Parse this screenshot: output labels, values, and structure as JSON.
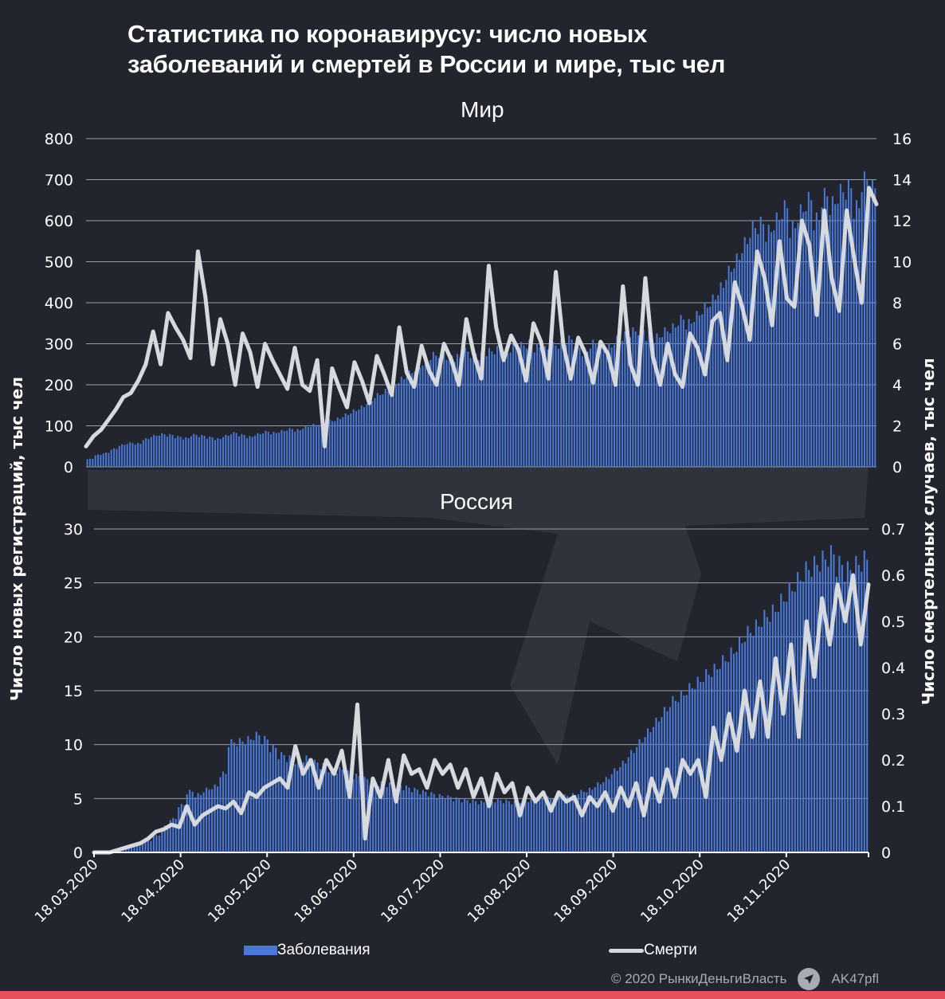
{
  "title_line1": "Статистика по коронавирусу: число новых",
  "title_line2": "заболеваний и смертей в России и мире, тыс чел",
  "legend": {
    "cases": "Заболевания",
    "deaths": "Смерти"
  },
  "footer": {
    "copyright": "© 2020  РынкиДеньгиВласть",
    "telegram_handle": "AK47pfl"
  },
  "colors": {
    "background": "#22252e",
    "bars": "#4a78d8",
    "line": "#d6d9de",
    "grid": "#9a9ea6",
    "accent_bar": "#e8505b"
  },
  "chart_data": [
    {
      "type": "bar+line",
      "title": "Мир",
      "ylabel_left": "Число новых регистраций, тыс чел",
      "ylabel_right": "Число смертельных случаев, тыс чел",
      "ylim_left": [
        0,
        800
      ],
      "ylim_right": [
        0,
        16
      ],
      "yticks_left": [
        0,
        100,
        200,
        300,
        400,
        500,
        600,
        700,
        800
      ],
      "yticks_right": [
        0,
        2,
        4,
        6,
        8,
        10,
        12,
        14,
        16
      ],
      "grid": true,
      "x_start": "18.03.2020",
      "x_step_days": 3,
      "series": [
        {
          "name": "Заболевания",
          "axis": "left",
          "kind": "bar",
          "values": [
            20,
            30,
            35,
            45,
            55,
            60,
            58,
            70,
            78,
            82,
            80,
            75,
            72,
            80,
            78,
            74,
            70,
            78,
            85,
            80,
            75,
            82,
            88,
            85,
            90,
            95,
            92,
            100,
            105,
            110,
            115,
            120,
            130,
            140,
            150,
            165,
            180,
            190,
            205,
            220,
            235,
            250,
            265,
            280,
            285,
            280,
            275,
            290,
            285,
            280,
            290,
            295,
            285,
            300,
            305,
            310,
            300,
            295,
            305,
            310,
            320,
            300,
            290,
            310,
            305,
            300,
            320,
            330,
            340,
            345,
            330,
            325,
            340,
            350,
            370,
            360,
            380,
            400,
            420,
            450,
            490,
            520,
            560,
            600,
            610,
            590,
            620,
            650,
            600,
            640,
            670,
            620,
            680,
            660,
            690,
            700,
            650,
            720,
            700
          ]
        },
        {
          "name": "Смерти",
          "axis": "right",
          "kind": "line",
          "values": [
            1.0,
            1.5,
            1.8,
            2.3,
            2.8,
            3.4,
            3.6,
            4.2,
            5.0,
            6.6,
            5.0,
            7.5,
            6.8,
            6.2,
            5.3,
            10.5,
            8.3,
            5.0,
            7.2,
            6.0,
            4.0,
            6.5,
            5.6,
            3.9,
            6.0,
            5.2,
            4.5,
            3.8,
            5.8,
            4.0,
            3.7,
            5.2,
            1.0,
            4.8,
            3.8,
            2.9,
            5.1,
            4.2,
            3.1,
            5.4,
            4.5,
            3.5,
            6.8,
            4.6,
            3.9,
            5.9,
            4.7,
            4.0,
            6.0,
            5.2,
            4.0,
            7.2,
            5.5,
            4.3,
            9.8,
            6.8,
            5.2,
            6.4,
            5.7,
            4.2,
            7.0,
            6.1,
            4.3,
            9.5,
            6.0,
            4.3,
            6.3,
            5.5,
            4.1,
            6.1,
            5.5,
            4.0,
            8.8,
            5.0,
            4.0,
            9.2,
            5.4,
            4.0,
            6.0,
            4.5,
            3.9,
            6.5,
            5.8,
            4.5,
            7.1,
            7.5,
            5.2,
            9.0,
            7.8,
            6.2,
            10.5,
            9.2,
            6.9,
            11.0,
            8.2,
            7.8,
            12.0,
            10.8,
            7.4,
            12.5,
            9.2,
            7.6,
            12.5,
            10.2,
            8.0,
            13.6,
            12.8
          ]
        }
      ]
    },
    {
      "type": "bar+line",
      "title": "Россия",
      "ylabel_left": "Число новых регистраций, тыс чел",
      "ylabel_right": "Число смертельных случаев, тыс чел",
      "ylim_left": [
        0,
        30
      ],
      "ylim_right": [
        0,
        0.7
      ],
      "yticks_left": [
        0,
        5,
        10,
        15,
        20,
        25,
        30
      ],
      "yticks_right": [
        0,
        0.1,
        0.2,
        0.3,
        0.4,
        0.5,
        0.6,
        0.7
      ],
      "grid": true,
      "x_start": "18.03.2020",
      "x_step_days": 3,
      "xticks": [
        "18.03.2020",
        "18.04.2020",
        "18.05.2020",
        "18.06.2020",
        "18.07.2020",
        "18.08.2020",
        "18.09.2020",
        "18.10.2020",
        "18.11.2020"
      ],
      "series": [
        {
          "name": "Заболевания",
          "axis": "left",
          "kind": "bar",
          "values": [
            0.05,
            0.1,
            0.2,
            0.3,
            0.5,
            0.8,
            1.1,
            1.6,
            2.5,
            3.2,
            4.5,
            5.8,
            5.5,
            6.0,
            6.3,
            7.5,
            10.5,
            10.6,
            10.8,
            11.2,
            10.8,
            10.0,
            9.3,
            9.0,
            8.8,
            9.0,
            8.6,
            8.3,
            8.0,
            7.9,
            7.6,
            7.3,
            7.0,
            6.7,
            6.6,
            6.5,
            6.4,
            6.2,
            6.0,
            5.8,
            5.6,
            5.4,
            5.3,
            5.1,
            5.0,
            4.9,
            4.8,
            4.9,
            5.0,
            4.9,
            4.8,
            4.9,
            5.0,
            5.1,
            5.2,
            5.3,
            5.4,
            5.5,
            5.8,
            6.0,
            6.5,
            7.0,
            7.8,
            8.5,
            9.5,
            10.5,
            11.5,
            12.5,
            13.5,
            14.5,
            15.0,
            15.7,
            16.3,
            17.0,
            17.5,
            18.3,
            19.0,
            20.0,
            21.0,
            21.6,
            22.5,
            23.0,
            24.0,
            25.0,
            26.0,
            27.0,
            27.5,
            28.0,
            28.5,
            27.5,
            27.0,
            27.5,
            28.0
          ]
        },
        {
          "name": "Смерти",
          "axis": "right",
          "kind": "line",
          "values": [
            0.0,
            0.0,
            0.0,
            0.005,
            0.01,
            0.015,
            0.02,
            0.03,
            0.045,
            0.05,
            0.06,
            0.055,
            0.1,
            0.06,
            0.08,
            0.09,
            0.1,
            0.095,
            0.11,
            0.085,
            0.13,
            0.12,
            0.14,
            0.15,
            0.16,
            0.14,
            0.23,
            0.17,
            0.2,
            0.14,
            0.2,
            0.17,
            0.22,
            0.12,
            0.32,
            0.03,
            0.16,
            0.12,
            0.2,
            0.11,
            0.21,
            0.17,
            0.18,
            0.14,
            0.2,
            0.17,
            0.19,
            0.14,
            0.18,
            0.12,
            0.16,
            0.1,
            0.17,
            0.13,
            0.15,
            0.08,
            0.14,
            0.11,
            0.13,
            0.09,
            0.13,
            0.11,
            0.12,
            0.08,
            0.12,
            0.1,
            0.13,
            0.09,
            0.14,
            0.1,
            0.15,
            0.08,
            0.16,
            0.11,
            0.18,
            0.12,
            0.2,
            0.17,
            0.2,
            0.12,
            0.27,
            0.2,
            0.3,
            0.22,
            0.35,
            0.25,
            0.37,
            0.25,
            0.42,
            0.3,
            0.45,
            0.25,
            0.5,
            0.38,
            0.55,
            0.45,
            0.58,
            0.5,
            0.6,
            0.45,
            0.58
          ]
        }
      ]
    }
  ]
}
